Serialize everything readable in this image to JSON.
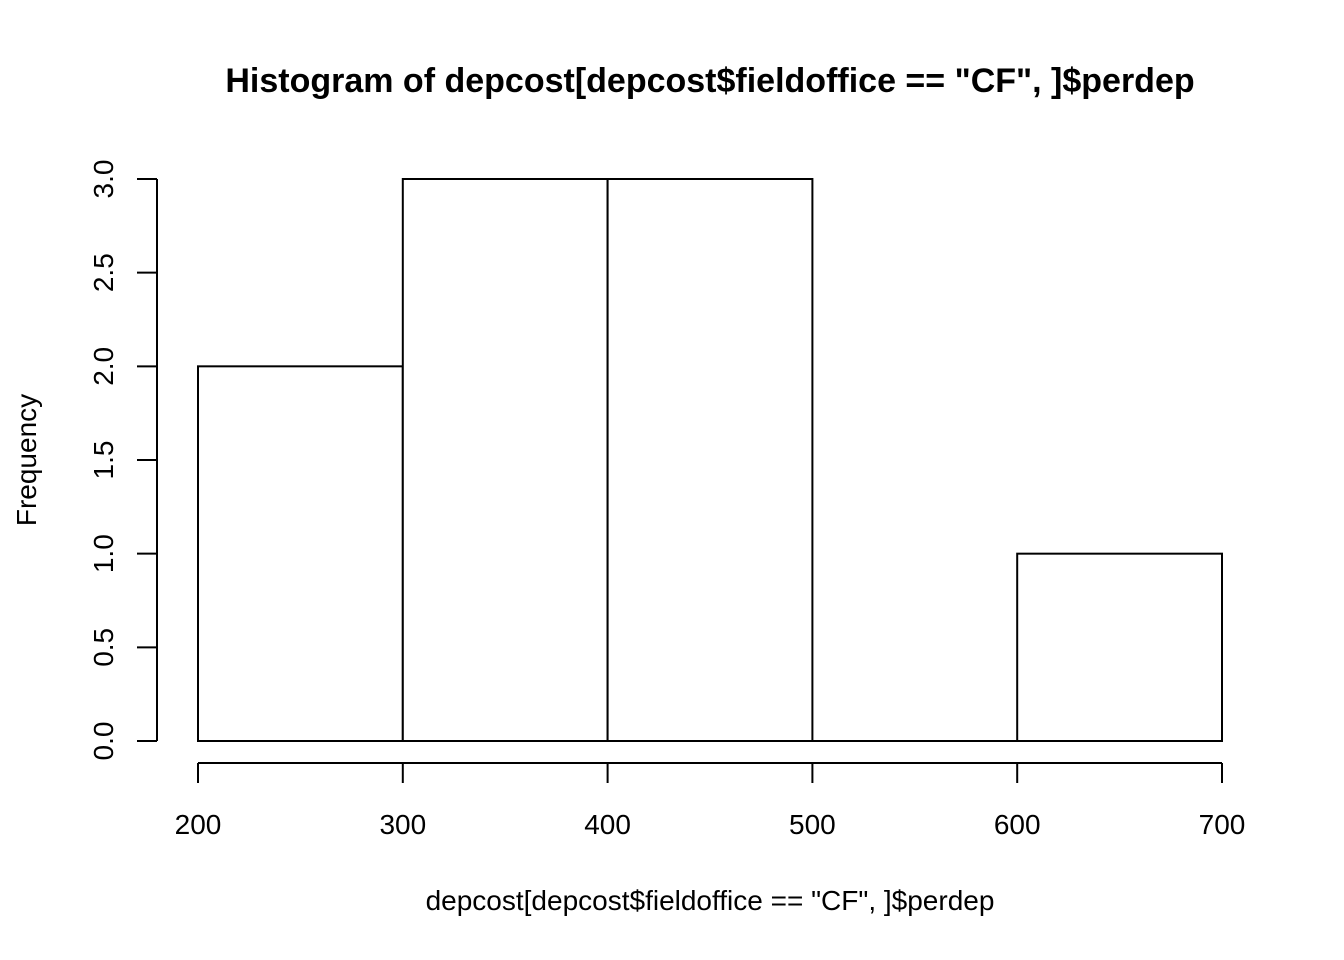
{
  "chart_data": {
    "type": "bar",
    "title": "Histogram of depcost[depcost$fieldoffice == \"CF\", ]$perdep",
    "xlabel": "depcost[depcost$fieldoffice == \"CF\", ]$perdep",
    "ylabel": "Frequency",
    "bins": [
      {
        "start": 200,
        "end": 300,
        "count": 2
      },
      {
        "start": 300,
        "end": 400,
        "count": 3
      },
      {
        "start": 400,
        "end": 500,
        "count": 3
      },
      {
        "start": 500,
        "end": 600,
        "count": 0
      },
      {
        "start": 600,
        "end": 700,
        "count": 1
      }
    ],
    "xlim": [
      200,
      700
    ],
    "ylim": [
      0,
      3
    ],
    "x_ticks": [
      200,
      300,
      400,
      500,
      600,
      700
    ],
    "y_ticks": [
      0,
      0.5,
      1,
      1.5,
      2,
      2.5,
      3
    ],
    "y_tick_labels": [
      "0.0",
      "0.5",
      "1.0",
      "1.5",
      "2.0",
      "2.5",
      "3.0"
    ],
    "grid": false,
    "colors": {
      "bar_fill": "#ffffff",
      "bar_stroke": "#000000"
    }
  }
}
